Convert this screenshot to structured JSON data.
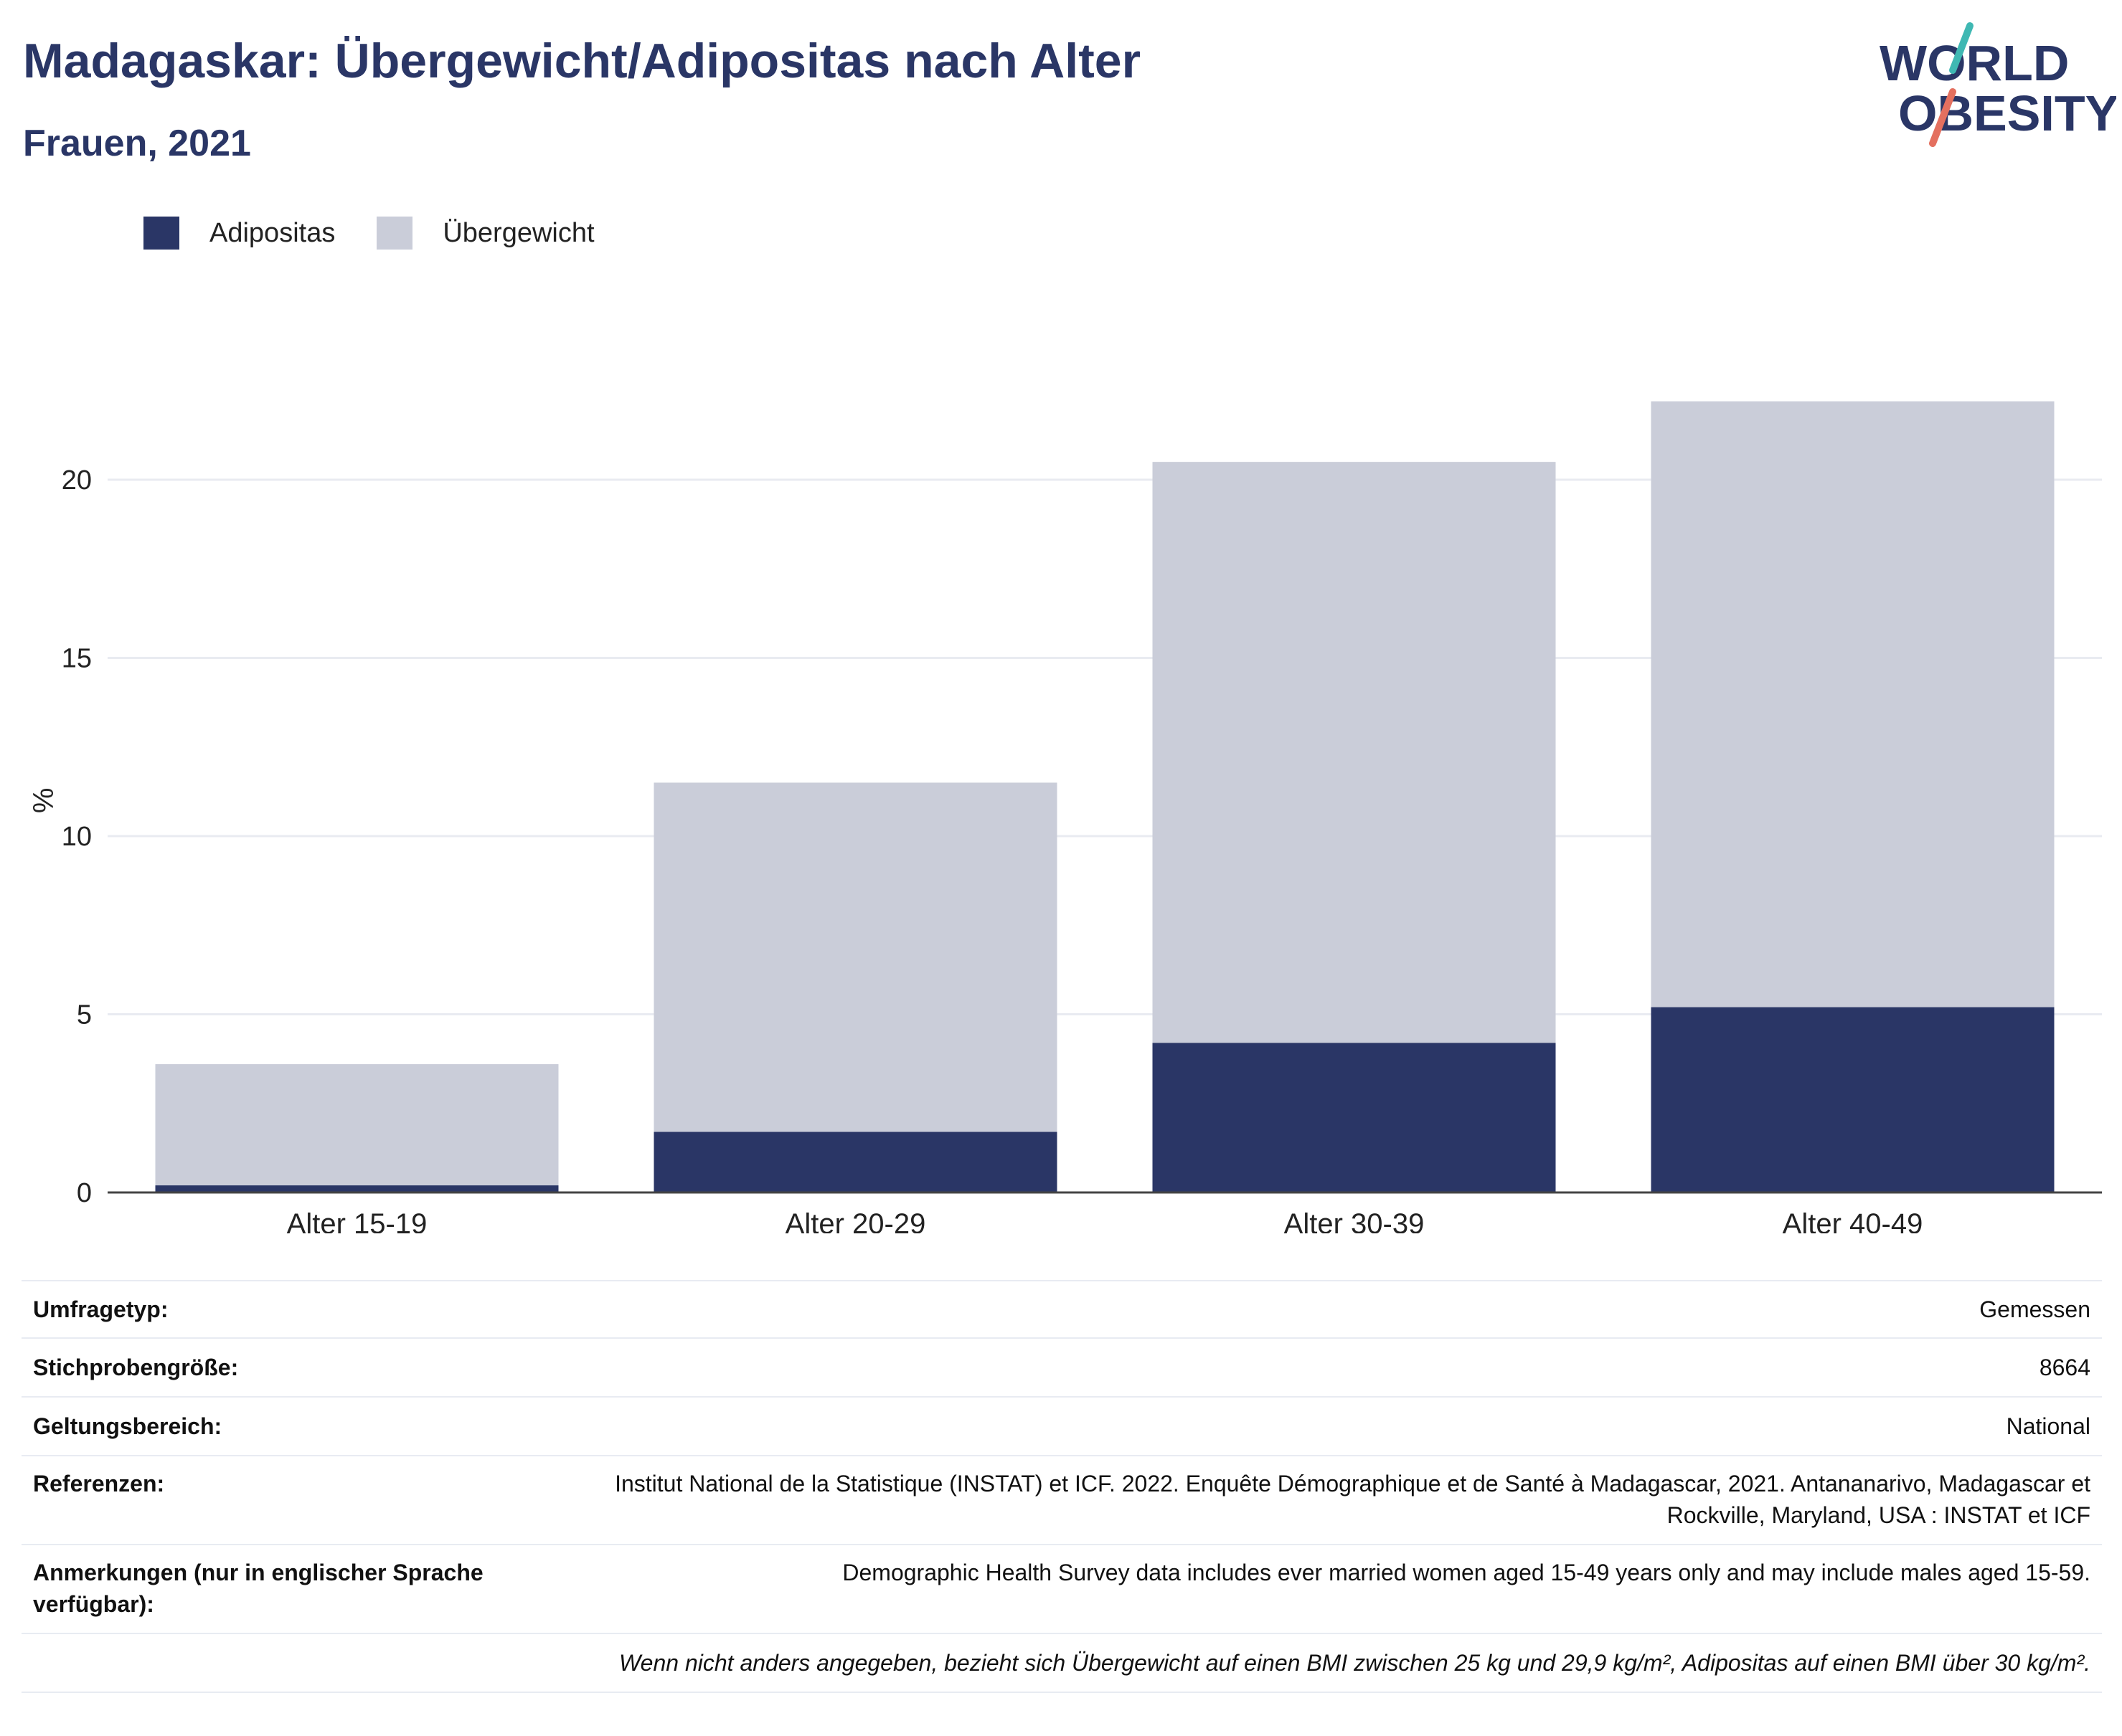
{
  "header": {
    "title": "Madagaskar: Übergewicht/Adipositas nach Alter",
    "subtitle": "Frauen, 2021",
    "logo_line1": "WORLD",
    "logo_line2": "OBESITY"
  },
  "legend": [
    {
      "label": "Adipositas",
      "color": "#2a3666"
    },
    {
      "label": "Übergewicht",
      "color": "#cacdd9"
    }
  ],
  "chart_data": {
    "type": "bar",
    "stacked": true,
    "title": "",
    "xlabel": "",
    "ylabel": "%",
    "ylim": [
      0,
      23
    ],
    "yticks": [
      0,
      5,
      10,
      15,
      20
    ],
    "grid": true,
    "legend_position": "top-left",
    "categories": [
      "Alter 15-19",
      "Alter 20-29",
      "Alter 30-39",
      "Alter 40-49"
    ],
    "series": [
      {
        "name": "Adipositas",
        "color": "#2a3666",
        "values": [
          0.2,
          1.7,
          4.2,
          5.2
        ]
      },
      {
        "name": "Übergewicht",
        "color": "#cacdd9",
        "values": [
          3.4,
          9.8,
          16.3,
          17.0
        ]
      }
    ]
  },
  "meta": {
    "rows": [
      {
        "label": "Umfragetyp:",
        "value": "Gemessen"
      },
      {
        "label": "Stichprobengröße:",
        "value": "8664"
      },
      {
        "label": "Geltungsbereich:",
        "value": "National"
      },
      {
        "label": "Referenzen:",
        "value": "Institut National de la Statistique (INSTAT) et ICF. 2022. Enquête Démographique et de Santé à Madagascar, 2021. Antananarivo, Madagascar et Rockville, Maryland, USA : INSTAT et ICF"
      },
      {
        "label": "Anmerkungen (nur in englischer Sprache verfügbar):",
        "value": "Demographic Health Survey data includes ever married women aged 15-49 years only and may include males aged 15-59."
      }
    ],
    "footnote": "Wenn nicht anders angegeben, bezieht sich Übergewicht auf einen BMI zwischen 25 kg und 29,9 kg/m², Adipositas auf einen BMI über 30 kg/m²."
  }
}
